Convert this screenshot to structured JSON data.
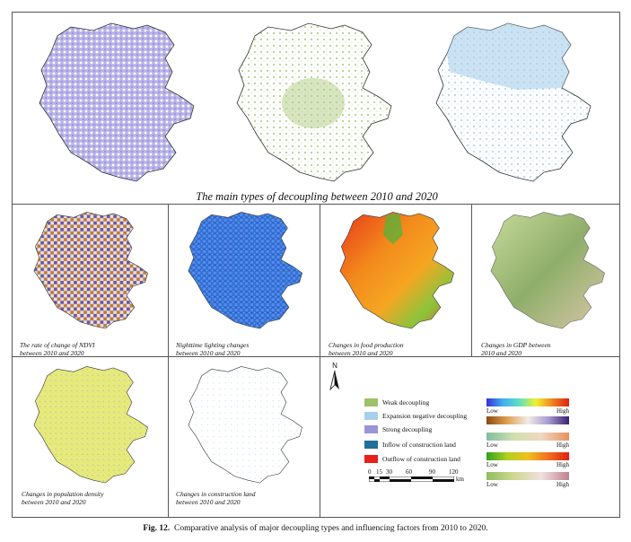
{
  "panels": {
    "main_title": "The main types of decoupling between 2010 and 2020",
    "ndvi_caption": [
      "The rate of change of NDVI",
      "between 2010 and 2020"
    ],
    "night_caption": [
      "Nighttime lighting changes",
      "between 2010 and 2020"
    ],
    "food_caption": [
      "Changes in food production",
      "between 2010 and 2020"
    ],
    "gdp_caption": [
      "Changes in GDP between",
      "2010 and 2020"
    ],
    "pop_caption": [
      "Changes in population density",
      "between 2010 and 2020"
    ],
    "construction_caption": [
      "Changes in construction land",
      "between 2010 and 2020"
    ]
  },
  "legend": {
    "north": "N",
    "items": [
      {
        "label": "Weak decoupling",
        "color": "#9cc26a"
      },
      {
        "label": "Expansion negative decoupling",
        "color": "#a8cfea"
      },
      {
        "label": "Strong decoupling",
        "color": "#9a94d8"
      },
      {
        "label": "Inflow of construction land",
        "color": "#1f6f9a"
      },
      {
        "label": "Outflow of construction land",
        "color": "#e8211b"
      }
    ],
    "ramp_low": "Low",
    "ramp_high": "High",
    "scale": {
      "ticks": [
        "0",
        "15",
        "30",
        "60",
        "90",
        "120"
      ],
      "unit": "km"
    }
  },
  "figure": {
    "label": "Fig. 12.",
    "caption": "Comparative analysis of major decoupling types and influencing factors from 2010 to 2020."
  }
}
